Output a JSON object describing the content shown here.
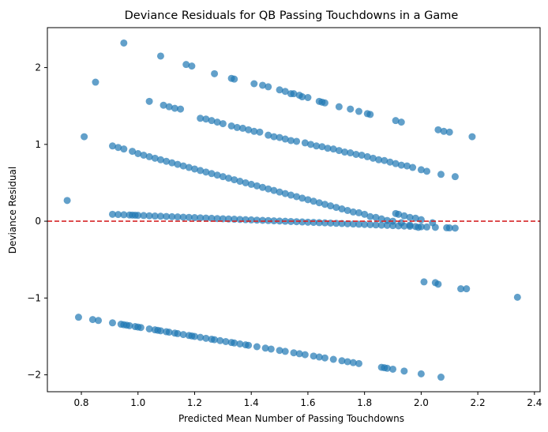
{
  "chart_data": {
    "type": "scatter",
    "title": "Deviance Residuals for QB Passing Touchdowns in a Game",
    "xlabel": "Predicted Mean Number of Passing Touchdowns",
    "ylabel": "Deviance Residual",
    "xlim": [
      0.68,
      2.42
    ],
    "ylim": [
      -2.22,
      2.52
    ],
    "xticks": [
      0.8,
      1.0,
      1.2,
      1.4,
      1.6,
      1.8,
      2.0,
      2.2,
      2.4
    ],
    "xtick_labels": [
      "0.8",
      "1.0",
      "1.2",
      "1.4",
      "1.6",
      "1.8",
      "2.0",
      "2.2",
      "2.4"
    ],
    "yticks": [
      -2,
      -1,
      0,
      1,
      2
    ],
    "ytick_labels": [
      "−2",
      "−1",
      "0",
      "1",
      "2"
    ],
    "grid": false,
    "reference_line": {
      "y": 0,
      "color": "#d62728",
      "style": "dashed"
    },
    "point_color": "#1f77b4",
    "bands": [
      {
        "x0": 0.79,
        "y0": -1.25,
        "x1": 2.07,
        "y1": -2.03,
        "xs": [
          0.79,
          0.84,
          0.86,
          0.91,
          0.94,
          0.95,
          0.96,
          0.97,
          0.99,
          1.0,
          1.01,
          1.04,
          1.06,
          1.07,
          1.08,
          1.1,
          1.11,
          1.13,
          1.14,
          1.16,
          1.18,
          1.19,
          1.2,
          1.22,
          1.24,
          1.26,
          1.27,
          1.29,
          1.31,
          1.33,
          1.34,
          1.36,
          1.38,
          1.39,
          1.42,
          1.45,
          1.47,
          1.5,
          1.52,
          1.55,
          1.57,
          1.59,
          1.62,
          1.64,
          1.66,
          1.69,
          1.72,
          1.74,
          1.76,
          1.78,
          1.86,
          1.87,
          1.88,
          1.9,
          1.94,
          2.0,
          2.07
        ]
      },
      {
        "x0": 0.91,
        "y0": 0.09,
        "x1": 2.12,
        "y1": -0.09,
        "xs": [
          0.91,
          0.93,
          0.95,
          0.97,
          0.98,
          0.99,
          1.0,
          1.02,
          1.04,
          1.06,
          1.08,
          1.1,
          1.12,
          1.14,
          1.16,
          1.18,
          1.2,
          1.22,
          1.24,
          1.26,
          1.28,
          1.3,
          1.32,
          1.34,
          1.36,
          1.38,
          1.4,
          1.42,
          1.44,
          1.46,
          1.48,
          1.5,
          1.52,
          1.54,
          1.56,
          1.58,
          1.6,
          1.62,
          1.64,
          1.66,
          1.68,
          1.7,
          1.72,
          1.74,
          1.76,
          1.78,
          1.8,
          1.82,
          1.84,
          1.86,
          1.88,
          1.9,
          1.92,
          1.94,
          1.96,
          1.98,
          2.0,
          2.02,
          2.05,
          2.09,
          2.1,
          2.12
        ]
      }
    ],
    "points": [
      [
        0.75,
        0.27
      ],
      [
        0.81,
        1.1
      ],
      [
        0.85,
        1.81
      ],
      [
        0.95,
        2.32
      ],
      [
        1.08,
        2.15
      ],
      [
        1.17,
        2.04
      ],
      [
        1.19,
        2.02
      ],
      [
        1.27,
        1.92
      ],
      [
        1.33,
        1.86
      ],
      [
        1.34,
        1.85
      ],
      [
        1.41,
        1.79
      ],
      [
        1.44,
        1.77
      ],
      [
        1.46,
        1.75
      ],
      [
        1.5,
        1.71
      ],
      [
        1.52,
        1.69
      ],
      [
        1.54,
        1.66
      ],
      [
        1.55,
        1.66
      ],
      [
        1.57,
        1.64
      ],
      [
        1.58,
        1.62
      ],
      [
        1.6,
        1.61
      ],
      [
        1.64,
        1.56
      ],
      [
        1.65,
        1.55
      ],
      [
        1.66,
        1.54
      ],
      [
        1.71,
        1.49
      ],
      [
        1.75,
        1.46
      ],
      [
        1.78,
        1.43
      ],
      [
        1.81,
        1.4
      ],
      [
        1.82,
        1.39
      ],
      [
        1.91,
        1.31
      ],
      [
        1.93,
        1.29
      ],
      [
        2.06,
        1.19
      ],
      [
        2.08,
        1.17
      ],
      [
        2.1,
        1.16
      ],
      [
        2.18,
        1.1
      ],
      [
        1.04,
        1.56
      ],
      [
        1.09,
        1.51
      ],
      [
        1.11,
        1.49
      ],
      [
        1.13,
        1.47
      ],
      [
        1.15,
        1.46
      ],
      [
        1.22,
        1.34
      ],
      [
        1.24,
        1.33
      ],
      [
        1.26,
        1.31
      ],
      [
        1.28,
        1.29
      ],
      [
        1.3,
        1.27
      ],
      [
        1.33,
        1.24
      ],
      [
        1.35,
        1.22
      ],
      [
        1.37,
        1.21
      ],
      [
        1.39,
        1.19
      ],
      [
        1.41,
        1.17
      ],
      [
        1.43,
        1.16
      ],
      [
        1.46,
        1.12
      ],
      [
        1.48,
        1.1
      ],
      [
        1.5,
        1.09
      ],
      [
        1.52,
        1.07
      ],
      [
        1.54,
        1.05
      ],
      [
        1.56,
        1.04
      ],
      [
        1.59,
        1.02
      ],
      [
        1.61,
        1.0
      ],
      [
        1.63,
        0.98
      ],
      [
        1.65,
        0.97
      ],
      [
        1.67,
        0.95
      ],
      [
        1.69,
        0.94
      ],
      [
        1.71,
        0.92
      ],
      [
        1.73,
        0.9
      ],
      [
        1.75,
        0.89
      ],
      [
        1.77,
        0.87
      ],
      [
        1.79,
        0.86
      ],
      [
        1.81,
        0.84
      ],
      [
        1.83,
        0.82
      ],
      [
        1.85,
        0.8
      ],
      [
        1.87,
        0.79
      ],
      [
        1.89,
        0.77
      ],
      [
        1.91,
        0.75
      ],
      [
        1.93,
        0.73
      ],
      [
        1.95,
        0.72
      ],
      [
        1.97,
        0.7
      ],
      [
        2.0,
        0.67
      ],
      [
        2.02,
        0.65
      ],
      [
        2.07,
        0.61
      ],
      [
        2.12,
        0.58
      ],
      [
        0.91,
        0.98
      ],
      [
        0.93,
        0.96
      ],
      [
        0.95,
        0.94
      ],
      [
        0.98,
        0.91
      ],
      [
        1.0,
        0.88
      ],
      [
        1.02,
        0.86
      ],
      [
        1.04,
        0.84
      ],
      [
        1.06,
        0.82
      ],
      [
        1.08,
        0.8
      ],
      [
        1.1,
        0.78
      ],
      [
        1.12,
        0.76
      ],
      [
        1.14,
        0.74
      ],
      [
        1.16,
        0.72
      ],
      [
        1.18,
        0.7
      ],
      [
        1.2,
        0.68
      ],
      [
        1.22,
        0.66
      ],
      [
        1.24,
        0.64
      ],
      [
        1.26,
        0.62
      ],
      [
        1.28,
        0.6
      ],
      [
        1.3,
        0.58
      ],
      [
        1.32,
        0.56
      ],
      [
        1.34,
        0.54
      ],
      [
        1.36,
        0.52
      ],
      [
        1.38,
        0.5
      ],
      [
        1.4,
        0.48
      ],
      [
        1.42,
        0.46
      ],
      [
        1.44,
        0.44
      ],
      [
        1.46,
        0.42
      ],
      [
        1.48,
        0.4
      ],
      [
        1.5,
        0.38
      ],
      [
        1.52,
        0.36
      ],
      [
        1.54,
        0.34
      ],
      [
        1.56,
        0.32
      ],
      [
        1.58,
        0.3
      ],
      [
        1.6,
        0.28
      ],
      [
        1.62,
        0.26
      ],
      [
        1.64,
        0.24
      ],
      [
        1.66,
        0.22
      ],
      [
        1.68,
        0.2
      ],
      [
        1.7,
        0.18
      ],
      [
        1.72,
        0.16
      ],
      [
        1.74,
        0.14
      ],
      [
        1.76,
        0.12
      ],
      [
        1.78,
        0.11
      ],
      [
        1.8,
        0.09
      ],
      [
        1.82,
        0.06
      ],
      [
        1.84,
        0.05
      ],
      [
        1.86,
        0.03
      ],
      [
        1.88,
        0.01
      ],
      [
        1.9,
        0.0
      ],
      [
        1.93,
        -0.02
      ],
      [
        1.96,
        -0.05
      ],
      [
        1.99,
        -0.08
      ],
      [
        1.91,
        0.1
      ],
      [
        1.92,
        0.09
      ],
      [
        1.94,
        0.07
      ],
      [
        1.96,
        0.05
      ],
      [
        1.98,
        0.04
      ],
      [
        2.0,
        0.02
      ],
      [
        2.04,
        -0.02
      ],
      [
        2.01,
        -0.79
      ],
      [
        2.05,
        -0.8
      ],
      [
        2.06,
        -0.82
      ],
      [
        2.14,
        -0.88
      ],
      [
        2.16,
        -0.88
      ],
      [
        2.34,
        -0.99
      ]
    ]
  }
}
